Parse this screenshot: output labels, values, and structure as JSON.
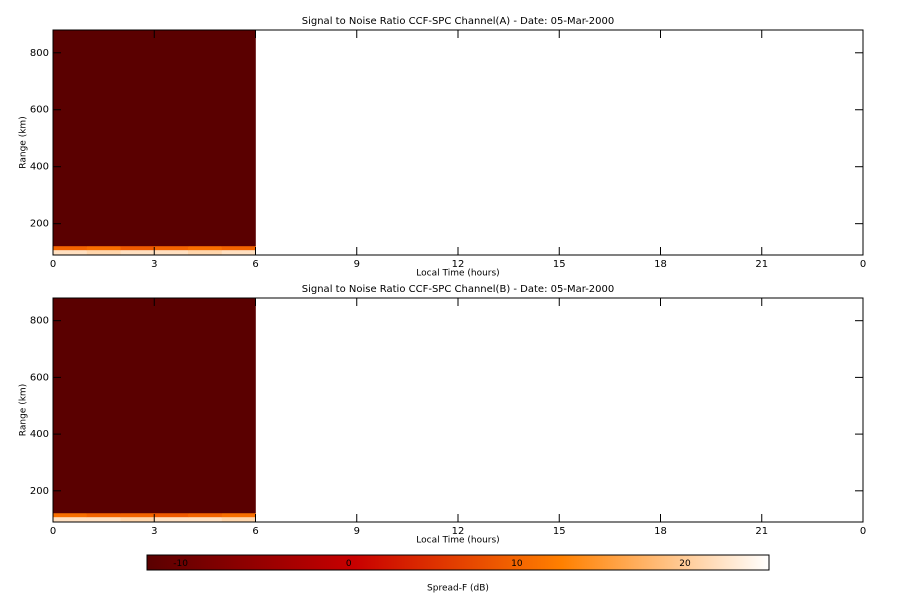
{
  "chart_data": [
    {
      "type": "heatmap",
      "title": "Signal to Noise Ratio CCF-SPC Channel(A) - Date: 05-Mar-2000",
      "x_label": "Local Time (hours)",
      "y_label": "Range (km)",
      "x_bins": [
        0,
        1,
        2,
        3,
        4,
        5,
        6
      ],
      "y_bins": [
        90,
        108,
        122,
        880
      ],
      "values": [
        [
          22,
          21,
          22,
          22,
          21,
          22
        ],
        [
          10,
          11,
          9,
          10,
          11,
          10
        ],
        [
          -12,
          -12,
          -12,
          -12,
          -12,
          -12
        ]
      ],
      "xlim": [
        0,
        24
      ],
      "xticks": [
        0,
        3,
        6,
        9,
        12,
        15,
        18,
        21,
        {
          "value": 24,
          "label": "0"
        }
      ],
      "ylim": [
        90,
        880
      ],
      "yticks": [
        200,
        400,
        600,
        800
      ]
    },
    {
      "type": "heatmap",
      "title": "Signal to Noise Ratio CCF-SPC Channel(B) - Date: 05-Mar-2000",
      "x_label": "Local Time (hours)",
      "y_label": "Range (km)",
      "x_bins": [
        0,
        1,
        2,
        3,
        4,
        5,
        6
      ],
      "y_bins": [
        90,
        108,
        122,
        880
      ],
      "values": [
        [
          22,
          22,
          21,
          22,
          22,
          21
        ],
        [
          11,
          10,
          10,
          9,
          10,
          11
        ],
        [
          -12,
          -12,
          -12,
          -12,
          -12,
          -12
        ]
      ],
      "xlim": [
        0,
        24
      ],
      "xticks": [
        0,
        3,
        6,
        9,
        12,
        15,
        18,
        21,
        {
          "value": 24,
          "label": "0"
        }
      ],
      "ylim": [
        90,
        880
      ],
      "yticks": [
        200,
        400,
        600,
        800
      ]
    },
    {
      "type": "colorbar",
      "x_label": "Spread-F (dB)",
      "xlim": [
        -12,
        25
      ],
      "xticks": [
        -10,
        0,
        10,
        20
      ],
      "colormap": [
        "#5a0000",
        "#c80000",
        "#ff8000",
        "#ffffff"
      ]
    }
  ]
}
